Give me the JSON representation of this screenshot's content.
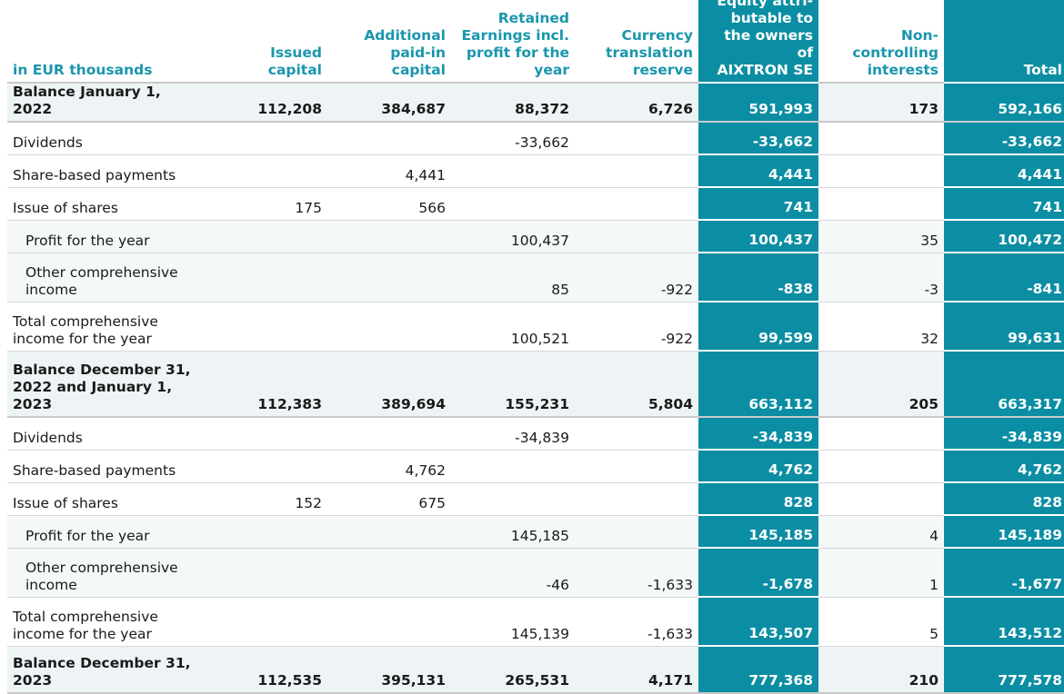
{
  "table": {
    "headers": [
      "in EUR thousands",
      "Issued\ncapital",
      "Additional\npaid-in\ncapital",
      "Retained\nEarnings incl.\nprofit for the\nyear",
      "Currency\ntranslation\nreserve",
      "Equity attri-\nbutable to\nthe owners of\nAIXTRON SE",
      "Non-\ncontrolling\ninterests",
      "Total"
    ],
    "rows": [
      {
        "label": "Balance January 1, 2022",
        "cells": [
          "112,208",
          "384,687",
          "88,372",
          "6,726",
          "591,993",
          "173",
          "592,166"
        ]
      },
      {
        "label": "Dividends",
        "cells": [
          "",
          "",
          "-33,662",
          "",
          "-33,662",
          "",
          "-33,662"
        ]
      },
      {
        "label": "Share-based payments",
        "cells": [
          "",
          "4,441",
          "",
          "",
          "4,441",
          "",
          "4,441"
        ]
      },
      {
        "label": "Issue of shares",
        "cells": [
          "175",
          "566",
          "",
          "",
          "741",
          "",
          "741"
        ]
      },
      {
        "label": "Profit for the year",
        "cells": [
          "",
          "",
          "100,437",
          "",
          "100,437",
          "35",
          "100,472"
        ]
      },
      {
        "label": "Other comprehensive\nincome",
        "cells": [
          "",
          "",
          "85",
          "-922",
          "-838",
          "-3",
          "-841"
        ]
      },
      {
        "label": "Total comprehensive\nincome for the year",
        "cells": [
          "",
          "",
          "100,521",
          "-922",
          "99,599",
          "32",
          "99,631"
        ]
      },
      {
        "label": "Balance December 31,\n2022 and January 1,\n2023",
        "cells": [
          "112,383",
          "389,694",
          "155,231",
          "5,804",
          "663,112",
          "205",
          "663,317"
        ]
      },
      {
        "label": "Dividends",
        "cells": [
          "",
          "",
          "-34,839",
          "",
          "-34,839",
          "",
          "-34,839"
        ]
      },
      {
        "label": "Share-based payments",
        "cells": [
          "",
          "4,762",
          "",
          "",
          "4,762",
          "",
          "4,762"
        ]
      },
      {
        "label": "Issue of shares",
        "cells": [
          "152",
          "675",
          "",
          "",
          "828",
          "",
          "828"
        ]
      },
      {
        "label": "Profit for the year",
        "cells": [
          "",
          "",
          "145,185",
          "",
          "145,185",
          "4",
          "145,189"
        ]
      },
      {
        "label": "Other comprehensive\nincome",
        "cells": [
          "",
          "",
          "-46",
          "-1,633",
          "-1,678",
          "1",
          "-1,677"
        ]
      },
      {
        "label": "Total comprehensive\nincome for the year",
        "cells": [
          "",
          "",
          "145,139",
          "-1,633",
          "143,507",
          "5",
          "143,512"
        ]
      },
      {
        "label": "Balance December 31,\n2023",
        "cells": [
          "112,535",
          "395,131",
          "265,531",
          "4,171",
          "777,368",
          "210",
          "777,578"
        ]
      }
    ]
  },
  "colors": {
    "accent_header_text": "#1a96ad",
    "highlight_column_bg": "#0b8ea3",
    "highlight_column_text": "#ffffff"
  }
}
